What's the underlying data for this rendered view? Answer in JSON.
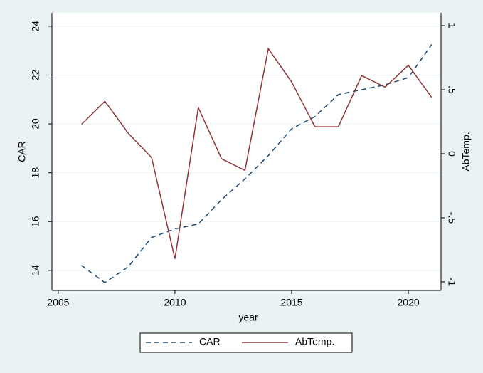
{
  "chart_data": {
    "type": "line",
    "x": [
      2006,
      2007,
      2008,
      2009,
      2010,
      2011,
      2012,
      2013,
      2014,
      2015,
      2016,
      2017,
      2018,
      2019,
      2020,
      2021
    ],
    "series": [
      {
        "name": "CAR",
        "color": "#1a476f",
        "dash": true,
        "axis": "y",
        "values": [
          14.2,
          13.5,
          14.15,
          15.35,
          15.7,
          15.9,
          16.9,
          17.75,
          18.7,
          19.8,
          20.3,
          21.2,
          21.4,
          21.6,
          21.9,
          23.25
        ]
      },
      {
        "name": "AbTemp.",
        "color": "#90353b",
        "dash": false,
        "axis": "y2",
        "values": [
          0.23,
          0.41,
          0.16,
          -0.03,
          -0.82,
          0.36,
          -0.04,
          -0.13,
          0.82,
          0.56,
          0.21,
          0.21,
          0.61,
          0.52,
          0.69,
          0.44
        ]
      }
    ],
    "x_label": "year",
    "y_label": "CAR",
    "y2_label": "AbTemp.",
    "xlim": [
      2004.73,
      2021.4
    ],
    "xticks": [
      2005,
      2010,
      2015,
      2020
    ],
    "ylim": [
      13.18,
      24.55
    ],
    "yticks": [
      14,
      16,
      18,
      20,
      22,
      24
    ],
    "y2lim": [
      -1.067,
      1.1
    ],
    "y2ticks": [
      {
        "value": -1,
        "label": "-1"
      },
      {
        "value": -0.5,
        "label": "-.5"
      },
      0,
      {
        "value": 0.5,
        "label": ".5"
      },
      1
    ],
    "grid": true,
    "legend": "bottom"
  }
}
